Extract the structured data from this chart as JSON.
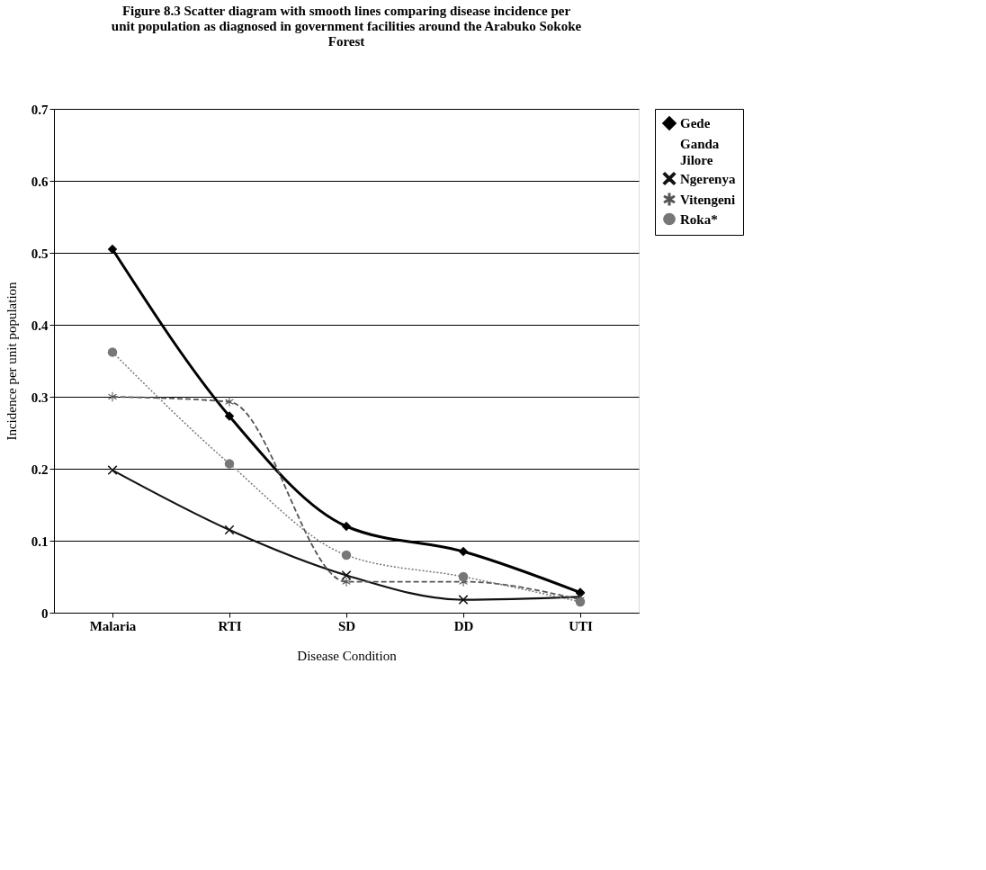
{
  "chart_data": {
    "type": "line",
    "title": "Figure 8.3 Scatter diagram with smooth lines comparing disease incidence per unit population as diagnosed in government facilities around the Arabuko Sokoke Forest",
    "xlabel": "Disease Condition",
    "ylabel": "Incidence per unit population",
    "categories": [
      "Malaria",
      "RTI",
      "SD",
      "DD",
      "UTI"
    ],
    "series": [
      {
        "name": "Gede",
        "color": "#000000",
        "marker": "diamond",
        "line_style": "solid",
        "values": [
          0.505,
          0.273,
          0.12,
          0.085,
          0.028
        ]
      },
      {
        "name": "Ganda",
        "values": [
          null,
          null,
          null,
          null,
          null
        ]
      },
      {
        "name": "Jilore",
        "values": [
          null,
          null,
          null,
          null,
          null
        ]
      },
      {
        "name": "Ngerenya",
        "color": "#111111",
        "marker": "cross",
        "line_style": "solid",
        "values": [
          0.198,
          0.115,
          0.052,
          0.018,
          0.022
        ]
      },
      {
        "name": "Vitengeni",
        "color": "#555555",
        "marker": "star",
        "line_style": "dashed",
        "values": [
          0.3,
          0.293,
          0.043,
          0.043,
          0.018
        ]
      },
      {
        "name": "Roka*",
        "color": "#777777",
        "marker": "circle",
        "line_style": "dotted",
        "values": [
          0.362,
          0.207,
          0.08,
          0.05,
          0.015
        ]
      }
    ],
    "ylim": [
      0,
      0.7
    ],
    "yticks": [
      0,
      0.1,
      0.2,
      0.3,
      0.4,
      0.5,
      0.6,
      0.7
    ],
    "grid": "y",
    "legend": "right"
  }
}
